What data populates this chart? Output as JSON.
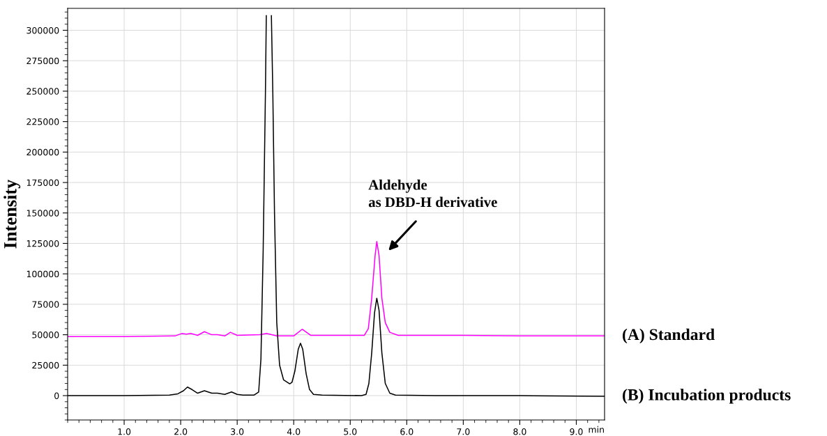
{
  "chart_data": {
    "type": "line",
    "ylabel": "Intensity",
    "xlabel": "min",
    "xlim": [
      0,
      9.5
    ],
    "xticks": [
      {
        "value": 1,
        "label": "1.0"
      },
      {
        "value": 2,
        "label": "2.0"
      },
      {
        "value": 3,
        "label": "3.0"
      },
      {
        "value": 4,
        "label": "4.0"
      },
      {
        "value": 5,
        "label": "5.0"
      },
      {
        "value": 6,
        "label": "6.0"
      },
      {
        "value": 7,
        "label": "7.0"
      },
      {
        "value": 8,
        "label": "8.0"
      },
      {
        "value": 9,
        "label": "9.0"
      }
    ],
    "ylim": [
      -20000,
      318000
    ],
    "yticks": [
      0,
      25000,
      50000,
      75000,
      100000,
      125000,
      150000,
      175000,
      200000,
      225000,
      250000,
      275000,
      300000
    ],
    "grid": true,
    "legend": false,
    "marker": "none",
    "line_style": "solid",
    "series": [
      {
        "name": "(A) Standard",
        "color": "#ff00ff",
        "x": [
          0,
          1.0,
          1.9,
          2.02,
          2.1,
          2.18,
          2.3,
          2.42,
          2.55,
          2.65,
          2.78,
          2.88,
          3.0,
          3.4,
          3.52,
          3.7,
          4.0,
          4.15,
          4.3,
          5.25,
          5.32,
          5.38,
          5.44,
          5.47,
          5.51,
          5.56,
          5.62,
          5.7,
          5.85,
          7.0,
          8.0,
          9.5
        ],
        "values": [
          48500,
          48500,
          49000,
          51000,
          50500,
          51000,
          49500,
          52500,
          50000,
          50000,
          49000,
          52000,
          49500,
          50000,
          51000,
          49000,
          49000,
          54500,
          49500,
          49500,
          55000,
          80000,
          115000,
          126500,
          115000,
          80000,
          60000,
          52000,
          49500,
          49500,
          49000,
          49000
        ]
      },
      {
        "name": "(B) Incubation products",
        "color": "#000000",
        "x": [
          0,
          1.0,
          1.8,
          1.95,
          2.05,
          2.12,
          2.2,
          2.3,
          2.42,
          2.55,
          2.65,
          2.78,
          2.9,
          3.0,
          3.1,
          3.3,
          3.38,
          3.42,
          3.46,
          3.5,
          3.515,
          3.56,
          3.605,
          3.63,
          3.66,
          3.7,
          3.75,
          3.82,
          3.93,
          3.97,
          4.02,
          4.08,
          4.12,
          4.16,
          4.22,
          4.28,
          4.35,
          4.5,
          5.2,
          5.28,
          5.33,
          5.38,
          5.43,
          5.47,
          5.51,
          5.56,
          5.62,
          5.7,
          5.8,
          6.5,
          8.0,
          9.5
        ],
        "values": [
          0,
          0,
          500,
          1500,
          4000,
          7000,
          5000,
          2000,
          4000,
          2000,
          2000,
          1000,
          3000,
          1000,
          500,
          500,
          3000,
          30000,
          120000,
          250000,
          312000,
          null,
          312000,
          250000,
          150000,
          60000,
          25000,
          13000,
          9700,
          11000,
          20000,
          38000,
          43000,
          38000,
          18000,
          5000,
          1000,
          500,
          0,
          1000,
          10000,
          35000,
          68000,
          80000,
          70000,
          35000,
          10000,
          2000,
          500,
          0,
          0,
          -500
        ]
      }
    ],
    "annotations": [
      "Aldehyde\nas DBD-H derivative"
    ]
  }
}
